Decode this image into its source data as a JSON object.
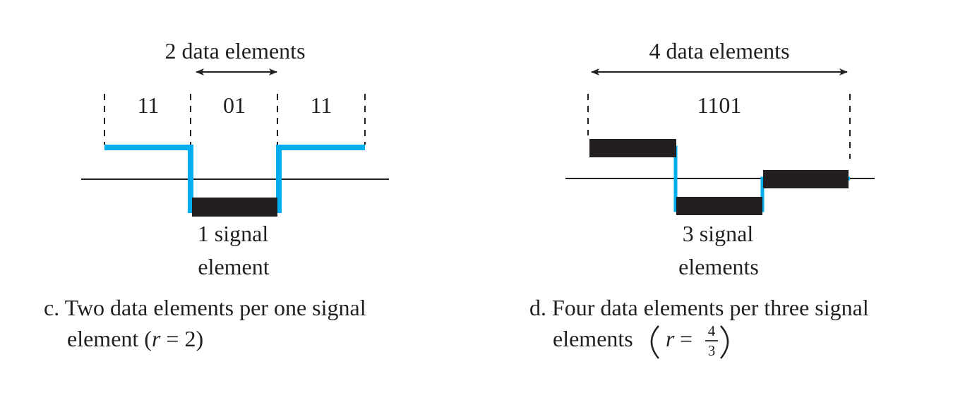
{
  "colors": {
    "signal_line": "#00aeef",
    "signal_element": "#231f20",
    "text": "#231f20",
    "background": "#ffffff"
  },
  "panel_c": {
    "header": "2 data elements",
    "data_groups": [
      "11",
      "01",
      "11"
    ],
    "signal_label_line1": "1 signal",
    "signal_label_line2": "element",
    "caption_line1": "c. Two data elements per one signal",
    "caption_line2_prefix": "element (",
    "caption_r": "r",
    "caption_eq": " = 2)"
  },
  "panel_d": {
    "header": "4 data elements",
    "data_groups": [
      "1101"
    ],
    "signal_label_line1": "3 signal",
    "signal_label_line2": "elements",
    "caption_line1": "d. Four data elements per three signal",
    "caption_line2_prefix": "elements",
    "caption_r": "r",
    "caption_eq": "=",
    "ratio_numerator": "4",
    "ratio_denominator": "3"
  }
}
